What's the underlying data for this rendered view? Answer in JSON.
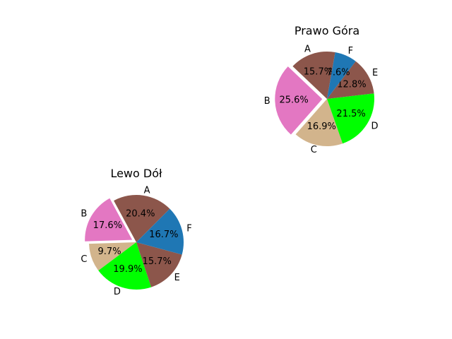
{
  "chart_data": [
    {
      "type": "pie",
      "title": "Prawo Góra",
      "start_angle_deg": 80,
      "direction": "counterclockwise",
      "slices": [
        {
          "label": "A",
          "percent": 15.7,
          "color": "#8c564b",
          "explode": false
        },
        {
          "label": "B",
          "percent": 25.6,
          "color": "#e377c2",
          "explode": true
        },
        {
          "label": "C",
          "percent": 16.9,
          "color": "#d2b48c",
          "explode": false
        },
        {
          "label": "D",
          "percent": 21.5,
          "color": "#00ff00",
          "explode": false
        },
        {
          "label": "E",
          "percent": 12.8,
          "color": "#8c564b",
          "explode": false
        },
        {
          "label": "F",
          "percent": 7.6,
          "color": "#1f77b4",
          "explode": false
        }
      ]
    },
    {
      "type": "pie",
      "title": "Lewo Dół",
      "start_angle_deg": 45,
      "direction": "counterclockwise",
      "slices": [
        {
          "label": "A",
          "percent": 20.4,
          "color": "#8c564b",
          "explode": false
        },
        {
          "label": "B",
          "percent": 17.6,
          "color": "#e377c2",
          "explode": true
        },
        {
          "label": "C",
          "percent": 9.7,
          "color": "#d2b48c",
          "explode": false
        },
        {
          "label": "D",
          "percent": 19.9,
          "color": "#00ff00",
          "explode": false
        },
        {
          "label": "E",
          "percent": 15.7,
          "color": "#8c564b",
          "explode": false
        },
        {
          "label": "F",
          "percent": 16.7,
          "color": "#1f77b4",
          "explode": false
        }
      ]
    }
  ]
}
